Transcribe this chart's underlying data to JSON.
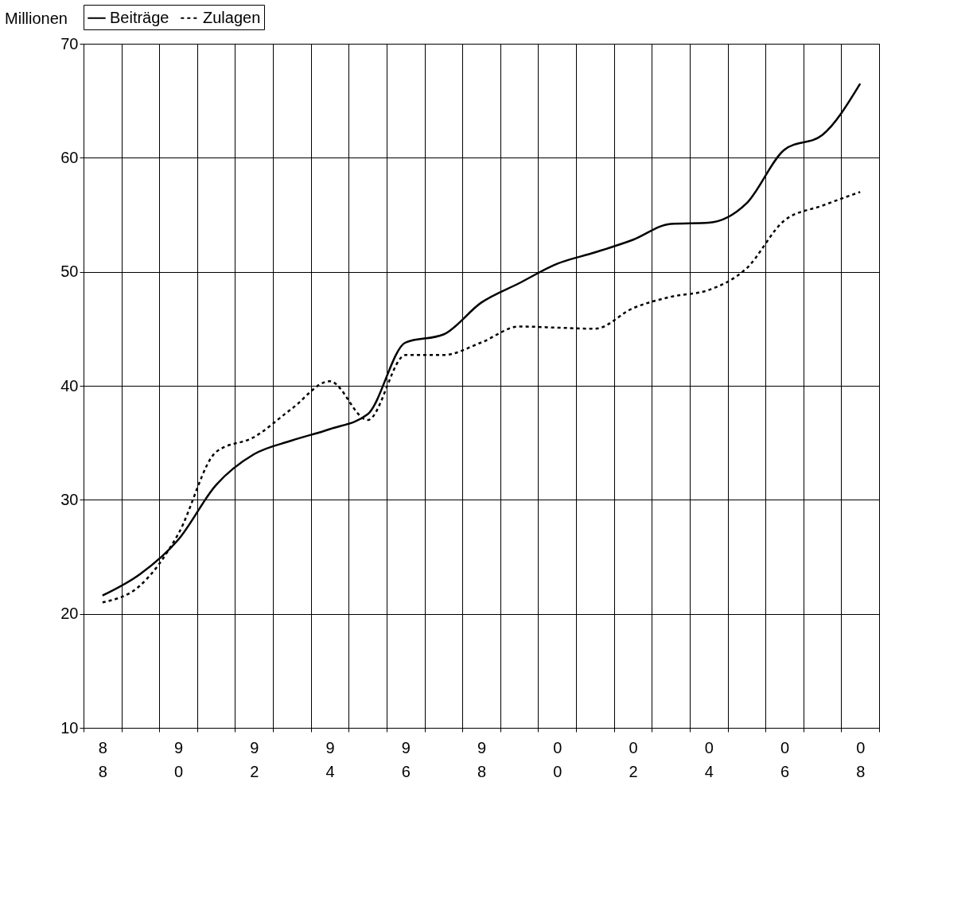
{
  "chart_data": {
    "type": "line",
    "ylabel": "Millionen",
    "categories": [
      "88",
      null,
      "90",
      null,
      "92",
      null,
      "94",
      null,
      "96",
      null,
      "98",
      null,
      "00",
      null,
      "02",
      null,
      "04",
      null,
      "06",
      null,
      "08"
    ],
    "series": [
      {
        "name": "Beiträge",
        "color": "#000000",
        "line_style": "solid",
        "values": [
          21.6,
          23.5,
          26.5,
          31.3,
          34.0,
          35.2,
          36.2,
          37.5,
          43.8,
          44.5,
          47.3,
          49.0,
          50.7,
          51.7,
          52.8,
          54.2,
          54.3,
          56.0,
          60.7,
          62.0,
          66.5
        ]
      },
      {
        "name": "Zulagen",
        "color": "#000000",
        "line_style": "dotted",
        "values": [
          21.0,
          22.5,
          27.0,
          34.2,
          35.5,
          38.0,
          40.4,
          37.0,
          42.7,
          42.7,
          43.8,
          45.2,
          45.1,
          45.0,
          46.8,
          47.8,
          48.4,
          50.3,
          54.5,
          55.8,
          57.0
        ]
      }
    ],
    "ylim": [
      10,
      70
    ],
    "yticks": [
      10,
      20,
      30,
      40,
      50,
      60,
      70
    ],
    "grid": true,
    "legend": "top",
    "marker": "none"
  }
}
